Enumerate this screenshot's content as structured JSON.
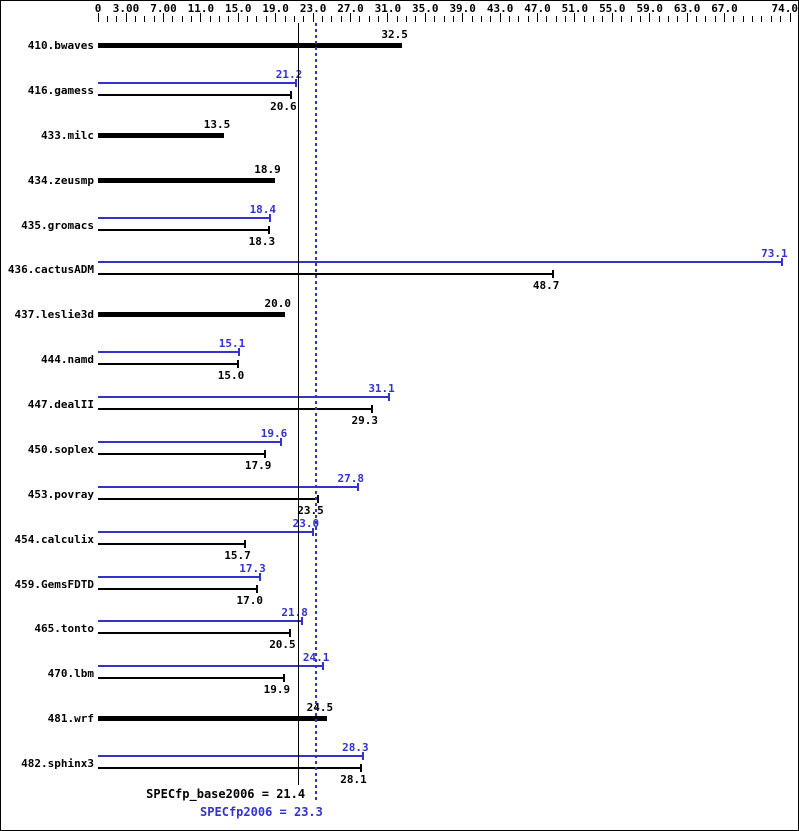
{
  "chart_data": {
    "type": "bar",
    "orientation": "horizontal",
    "title": "",
    "xlabel": "",
    "ylabel": "",
    "grid": false,
    "legend": "none",
    "axis": {
      "min": 0,
      "max": 74,
      "position": "top",
      "minor_tick_step": 1,
      "major_ticks": [
        0,
        3,
        7,
        11,
        15,
        19,
        23,
        27,
        31,
        35,
        39,
        43,
        47,
        51,
        55,
        59,
        63,
        67,
        74
      ],
      "major_tick_labels": [
        "0",
        "3.00",
        "7.00",
        "11.0",
        "15.0",
        "19.0",
        "23.0",
        "27.0",
        "31.0",
        "35.0",
        "39.0",
        "43.0",
        "47.0",
        "51.0",
        "55.0",
        "59.0",
        "63.0",
        "67.0",
        "74.0"
      ]
    },
    "benchmarks": [
      {
        "name": "410.bwaves",
        "base": 32.5,
        "peak": null
      },
      {
        "name": "416.gamess",
        "base": 20.6,
        "peak": 21.2
      },
      {
        "name": "433.milc",
        "base": 13.5,
        "peak": null
      },
      {
        "name": "434.zeusmp",
        "base": 18.9,
        "peak": null
      },
      {
        "name": "435.gromacs",
        "base": 18.3,
        "peak": 18.4
      },
      {
        "name": "436.cactusADM",
        "base": 48.7,
        "peak": 73.1
      },
      {
        "name": "437.leslie3d",
        "base": 20.0,
        "peak": null
      },
      {
        "name": "444.namd",
        "base": 15.0,
        "peak": 15.1
      },
      {
        "name": "447.dealII",
        "base": 29.3,
        "peak": 31.1
      },
      {
        "name": "450.soplex",
        "base": 17.9,
        "peak": 19.6
      },
      {
        "name": "453.povray",
        "base": 23.5,
        "peak": 27.8
      },
      {
        "name": "454.calculix",
        "base": 15.7,
        "peak": 23.0
      },
      {
        "name": "459.GemsFDTD",
        "base": 17.0,
        "peak": 17.3
      },
      {
        "name": "465.tonto",
        "base": 20.5,
        "peak": 21.8
      },
      {
        "name": "470.lbm",
        "base": 19.9,
        "peak": 24.1
      },
      {
        "name": "481.wrf",
        "base": 24.5,
        "peak": null
      },
      {
        "name": "482.sphinx3",
        "base": 28.1,
        "peak": 28.3
      }
    ],
    "summary": {
      "base_label": "SPECfp_base2006 = 21.4",
      "base_value": 21.4,
      "peak_label": "SPECfp2006 = 23.3",
      "peak_value": 23.3
    },
    "colors": {
      "base": "#000000",
      "peak": "#3333cc",
      "background": "#ffffff",
      "border": "#000000"
    }
  }
}
